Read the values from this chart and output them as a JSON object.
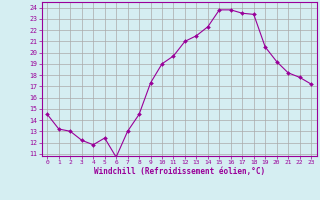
{
  "x": [
    0,
    1,
    2,
    3,
    4,
    5,
    6,
    7,
    8,
    9,
    10,
    11,
    12,
    13,
    14,
    15,
    16,
    17,
    18,
    19,
    20,
    21,
    22,
    23
  ],
  "y": [
    14.5,
    13.2,
    13.0,
    12.2,
    11.8,
    12.4,
    10.7,
    13.0,
    14.5,
    17.3,
    19.0,
    19.7,
    21.0,
    21.5,
    22.3,
    23.8,
    23.8,
    23.5,
    23.4,
    20.5,
    19.2,
    18.2,
    17.8,
    17.2
  ],
  "line_color": "#990099",
  "marker": "D",
  "marker_size": 2,
  "bg_color": "#d5eef2",
  "grid_color": "#aaaaaa",
  "xlabel": "Windchill (Refroidissement éolien,°C)",
  "xlabel_color": "#990099",
  "ylabel_ticks": [
    11,
    12,
    13,
    14,
    15,
    16,
    17,
    18,
    19,
    20,
    21,
    22,
    23,
    24
  ],
  "xlim": [
    -0.5,
    23.5
  ],
  "ylim": [
    10.8,
    24.5
  ],
  "xtick_labels": [
    "0",
    "1",
    "2",
    "3",
    "4",
    "5",
    "6",
    "7",
    "8",
    "9",
    "10",
    "11",
    "12",
    "13",
    "14",
    "15",
    "16",
    "17",
    "18",
    "19",
    "20",
    "21",
    "22",
    "23"
  ]
}
